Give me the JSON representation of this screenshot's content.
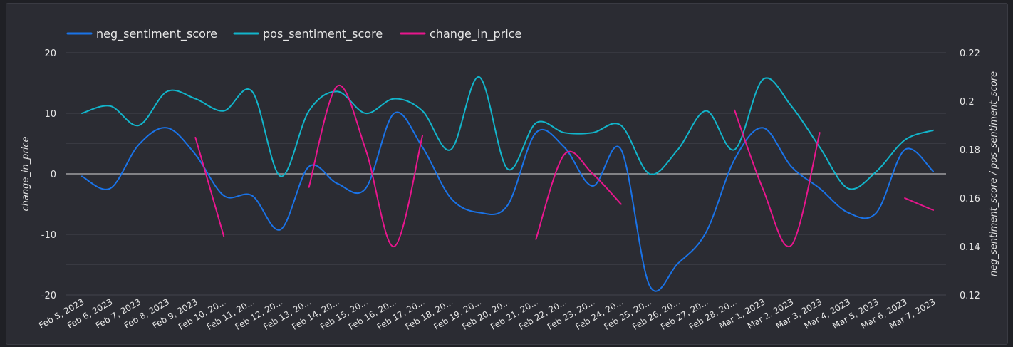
{
  "chart_data": {
    "type": "line",
    "x": [
      "Feb 5, 2023",
      "Feb 6, 2023",
      "Feb 7, 2023",
      "Feb 8, 2023",
      "Feb 9, 2023",
      "Feb 10, 20...",
      "Feb 11, 20...",
      "Feb 12, 20...",
      "Feb 13, 20...",
      "Feb 14, 20...",
      "Feb 15, 20...",
      "Feb 16, 20...",
      "Feb 17, 20...",
      "Feb 18, 20...",
      "Feb 19, 20...",
      "Feb 20, 20...",
      "Feb 21, 20...",
      "Feb 22, 20...",
      "Feb 23, 20...",
      "Feb 24, 20...",
      "Feb 25, 20...",
      "Feb 26, 20...",
      "Feb 27, 20...",
      "Feb 28, 20...",
      "Mar 1, 2023",
      "Mar 2, 2023",
      "Mar 3, 2023",
      "Mar 4, 2023",
      "Mar 5, 2023",
      "Mar 6, 2023",
      "Mar 7, 2023"
    ],
    "series": [
      {
        "name": "neg_sentiment_score",
        "axis": "right",
        "color": "#1a73e8",
        "values": [
          0.169,
          0.164,
          0.182,
          0.189,
          0.178,
          0.161,
          0.161,
          0.147,
          0.173,
          0.166,
          0.164,
          0.195,
          0.181,
          0.16,
          0.154,
          0.157,
          0.187,
          0.181,
          0.165,
          0.18,
          0.124,
          0.133,
          0.146,
          0.176,
          0.189,
          0.173,
          0.164,
          0.154,
          0.154,
          0.18,
          0.171
        ]
      },
      {
        "name": "pos_sentiment_score",
        "axis": "right",
        "color": "#12b5cb",
        "values": [
          0.195,
          0.198,
          0.19,
          0.204,
          0.201,
          0.196,
          0.204,
          0.169,
          0.196,
          0.204,
          0.195,
          0.201,
          0.196,
          0.18,
          0.21,
          0.172,
          0.191,
          0.187,
          0.187,
          0.19,
          0.17,
          0.18,
          0.196,
          0.18,
          0.209,
          0.198,
          0.181,
          0.164,
          0.171,
          0.184,
          0.188
        ]
      },
      {
        "name": "change_in_price",
        "axis": "left",
        "color": "#e8168d",
        "values": [
          null,
          null,
          null,
          null,
          6,
          -10.3,
          null,
          null,
          -2.2,
          14.5,
          4,
          -12,
          6.3,
          null,
          null,
          null,
          -10.8,
          3.2,
          0,
          -5,
          null,
          null,
          null,
          10.5,
          -2.5,
          -11.8,
          6.8,
          null,
          null,
          -4,
          -6
        ]
      }
    ],
    "xlabel": "",
    "ylabel": "change_in_price",
    "y2label": "neg_sentiment_score / pos_sentiment_score",
    "ylim": [
      -20,
      20
    ],
    "y2lim": [
      0.12,
      0.22
    ],
    "yticks": [
      "20",
      "10",
      "0",
      "-10",
      "-20"
    ],
    "y2ticks": [
      "0.22",
      "0.2",
      "0.18",
      "0.16",
      "0.14",
      "0.12"
    ],
    "grid": true,
    "legend": "top-left"
  }
}
